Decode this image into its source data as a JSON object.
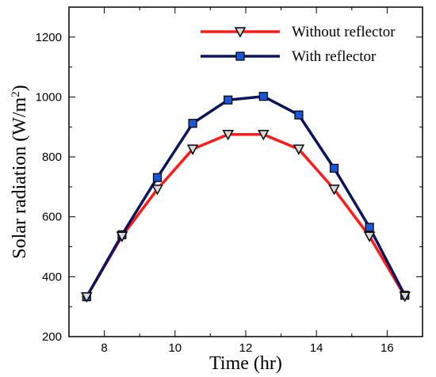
{
  "chart_data": {
    "type": "line",
    "x": [
      7.5,
      8.5,
      9.5,
      10.5,
      11.5,
      12.5,
      13.5,
      14.5,
      15.5,
      16.5
    ],
    "series": [
      {
        "name": "Without reflector",
        "values": [
          333,
          535,
          692,
          826,
          875,
          875,
          826,
          692,
          535,
          335
        ],
        "color": "#ff1a1a",
        "marker": "triangle-down-hollow"
      },
      {
        "name": "With reflector",
        "values": [
          333,
          540,
          731,
          912,
          990,
          1002,
          940,
          762,
          565,
          338
        ],
        "color": "#0a1560",
        "marker": "square-blue"
      }
    ],
    "xlabel": "Time (hr)",
    "ylabel_main": "Solar radiation (W/m",
    "ylabel_sup": "2",
    "ylabel_close": ")",
    "xlim": [
      7,
      17
    ],
    "ylim": [
      200,
      1300
    ],
    "xticks": [
      8,
      10,
      12,
      14,
      16
    ],
    "yticks": [
      200,
      400,
      600,
      800,
      1000,
      1200
    ],
    "grid": false,
    "legend_position": "top-right"
  },
  "colors": {
    "marker_fill_square": "#1a56d6",
    "marker_fill_triangle": "#d8d8d8"
  }
}
